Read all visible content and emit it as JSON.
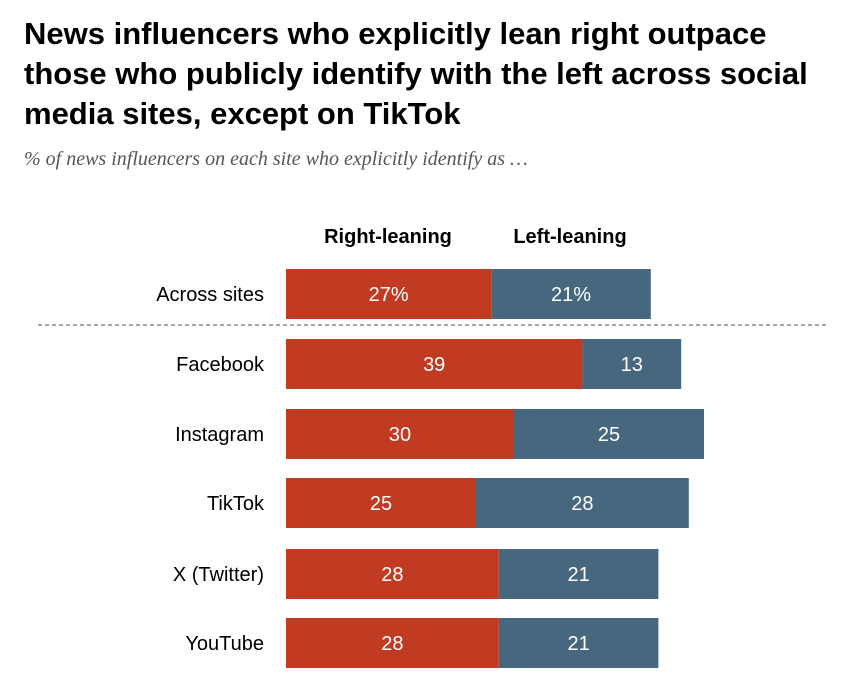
{
  "colors": {
    "right": "#c13b23",
    "left": "#47677f",
    "divider": "#888888"
  },
  "chart_data": {
    "type": "bar",
    "orientation": "horizontal",
    "stacked": true,
    "title": "News influencers who explicitly lean right outpace those who publicly identify with the left across social media sites, except on TikTok",
    "subtitle": "% of news influencers on each site who explicitly identify as …",
    "series_names": [
      "Right-leaning",
      "Left-leaning"
    ],
    "categories": [
      "Across sites",
      "Facebook",
      "Instagram",
      "TikTok",
      "X (Twitter)",
      "YouTube"
    ],
    "series": [
      {
        "name": "Right-leaning",
        "values": [
          27,
          39,
          30,
          25,
          28,
          28
        ],
        "labels": [
          "27%",
          "39",
          "30",
          "25",
          "28",
          "28"
        ]
      },
      {
        "name": "Left-leaning",
        "values": [
          21,
          13,
          25,
          28,
          21,
          21
        ],
        "labels": [
          "21%",
          "13",
          "25",
          "28",
          "21",
          "21"
        ]
      }
    ]
  }
}
